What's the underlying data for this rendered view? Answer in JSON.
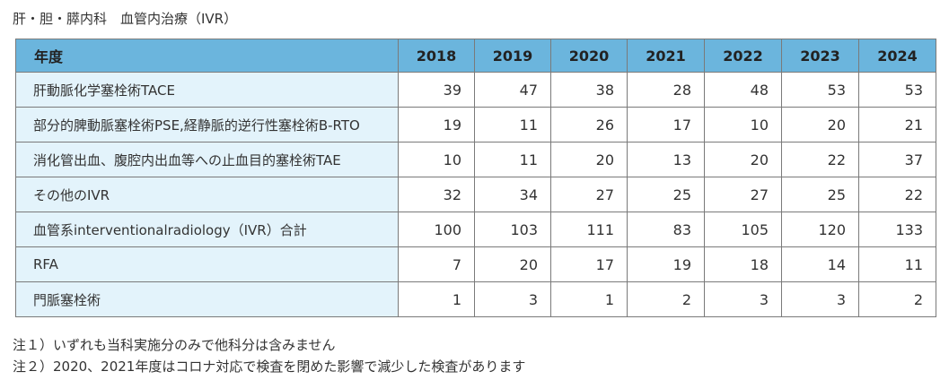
{
  "title": "肝・胆・膵内科　血管内治療（IVR）",
  "table": {
    "header_label": "年度",
    "years": [
      "2018",
      "2019",
      "2020",
      "2021",
      "2022",
      "2023",
      "2024"
    ],
    "rows": [
      {
        "label": "肝動脈化学塞栓術TACE",
        "values": [
          "39",
          "47",
          "38",
          "28",
          "48",
          "53",
          "53"
        ]
      },
      {
        "label": "部分的脾動脈塞栓術PSE,経静脈的逆行性塞栓術B-RTO",
        "values": [
          "19",
          "11",
          "26",
          "17",
          "10",
          "20",
          "21"
        ]
      },
      {
        "label": "消化管出血、腹腔内出血等への止血目的塞栓術TAE",
        "values": [
          "10",
          "11",
          "20",
          "13",
          "20",
          "22",
          "37"
        ]
      },
      {
        "label": "その他のIVR",
        "values": [
          "32",
          "34",
          "27",
          "25",
          "27",
          "25",
          "22"
        ]
      },
      {
        "label": "血管系interventionalradiology（IVR）合計",
        "values": [
          "100",
          "103",
          "111",
          "83",
          "105",
          "120",
          "133"
        ]
      },
      {
        "label": "RFA",
        "values": [
          "7",
          "20",
          "17",
          "19",
          "18",
          "14",
          "11"
        ]
      },
      {
        "label": "門脈塞栓術",
        "values": [
          "1",
          "3",
          "1",
          "2",
          "3",
          "3",
          "2"
        ]
      }
    ]
  },
  "notes": [
    "注１）いずれも当科実施分のみで他科分は含みません",
    "注２）2020、2021年度はコロナ対応で検査を閉めた影響で減少した検査があります"
  ],
  "colors": {
    "header_bg": "#6bb5dd",
    "label_bg": "#e3f3fb",
    "border": "#7a7a7a"
  }
}
